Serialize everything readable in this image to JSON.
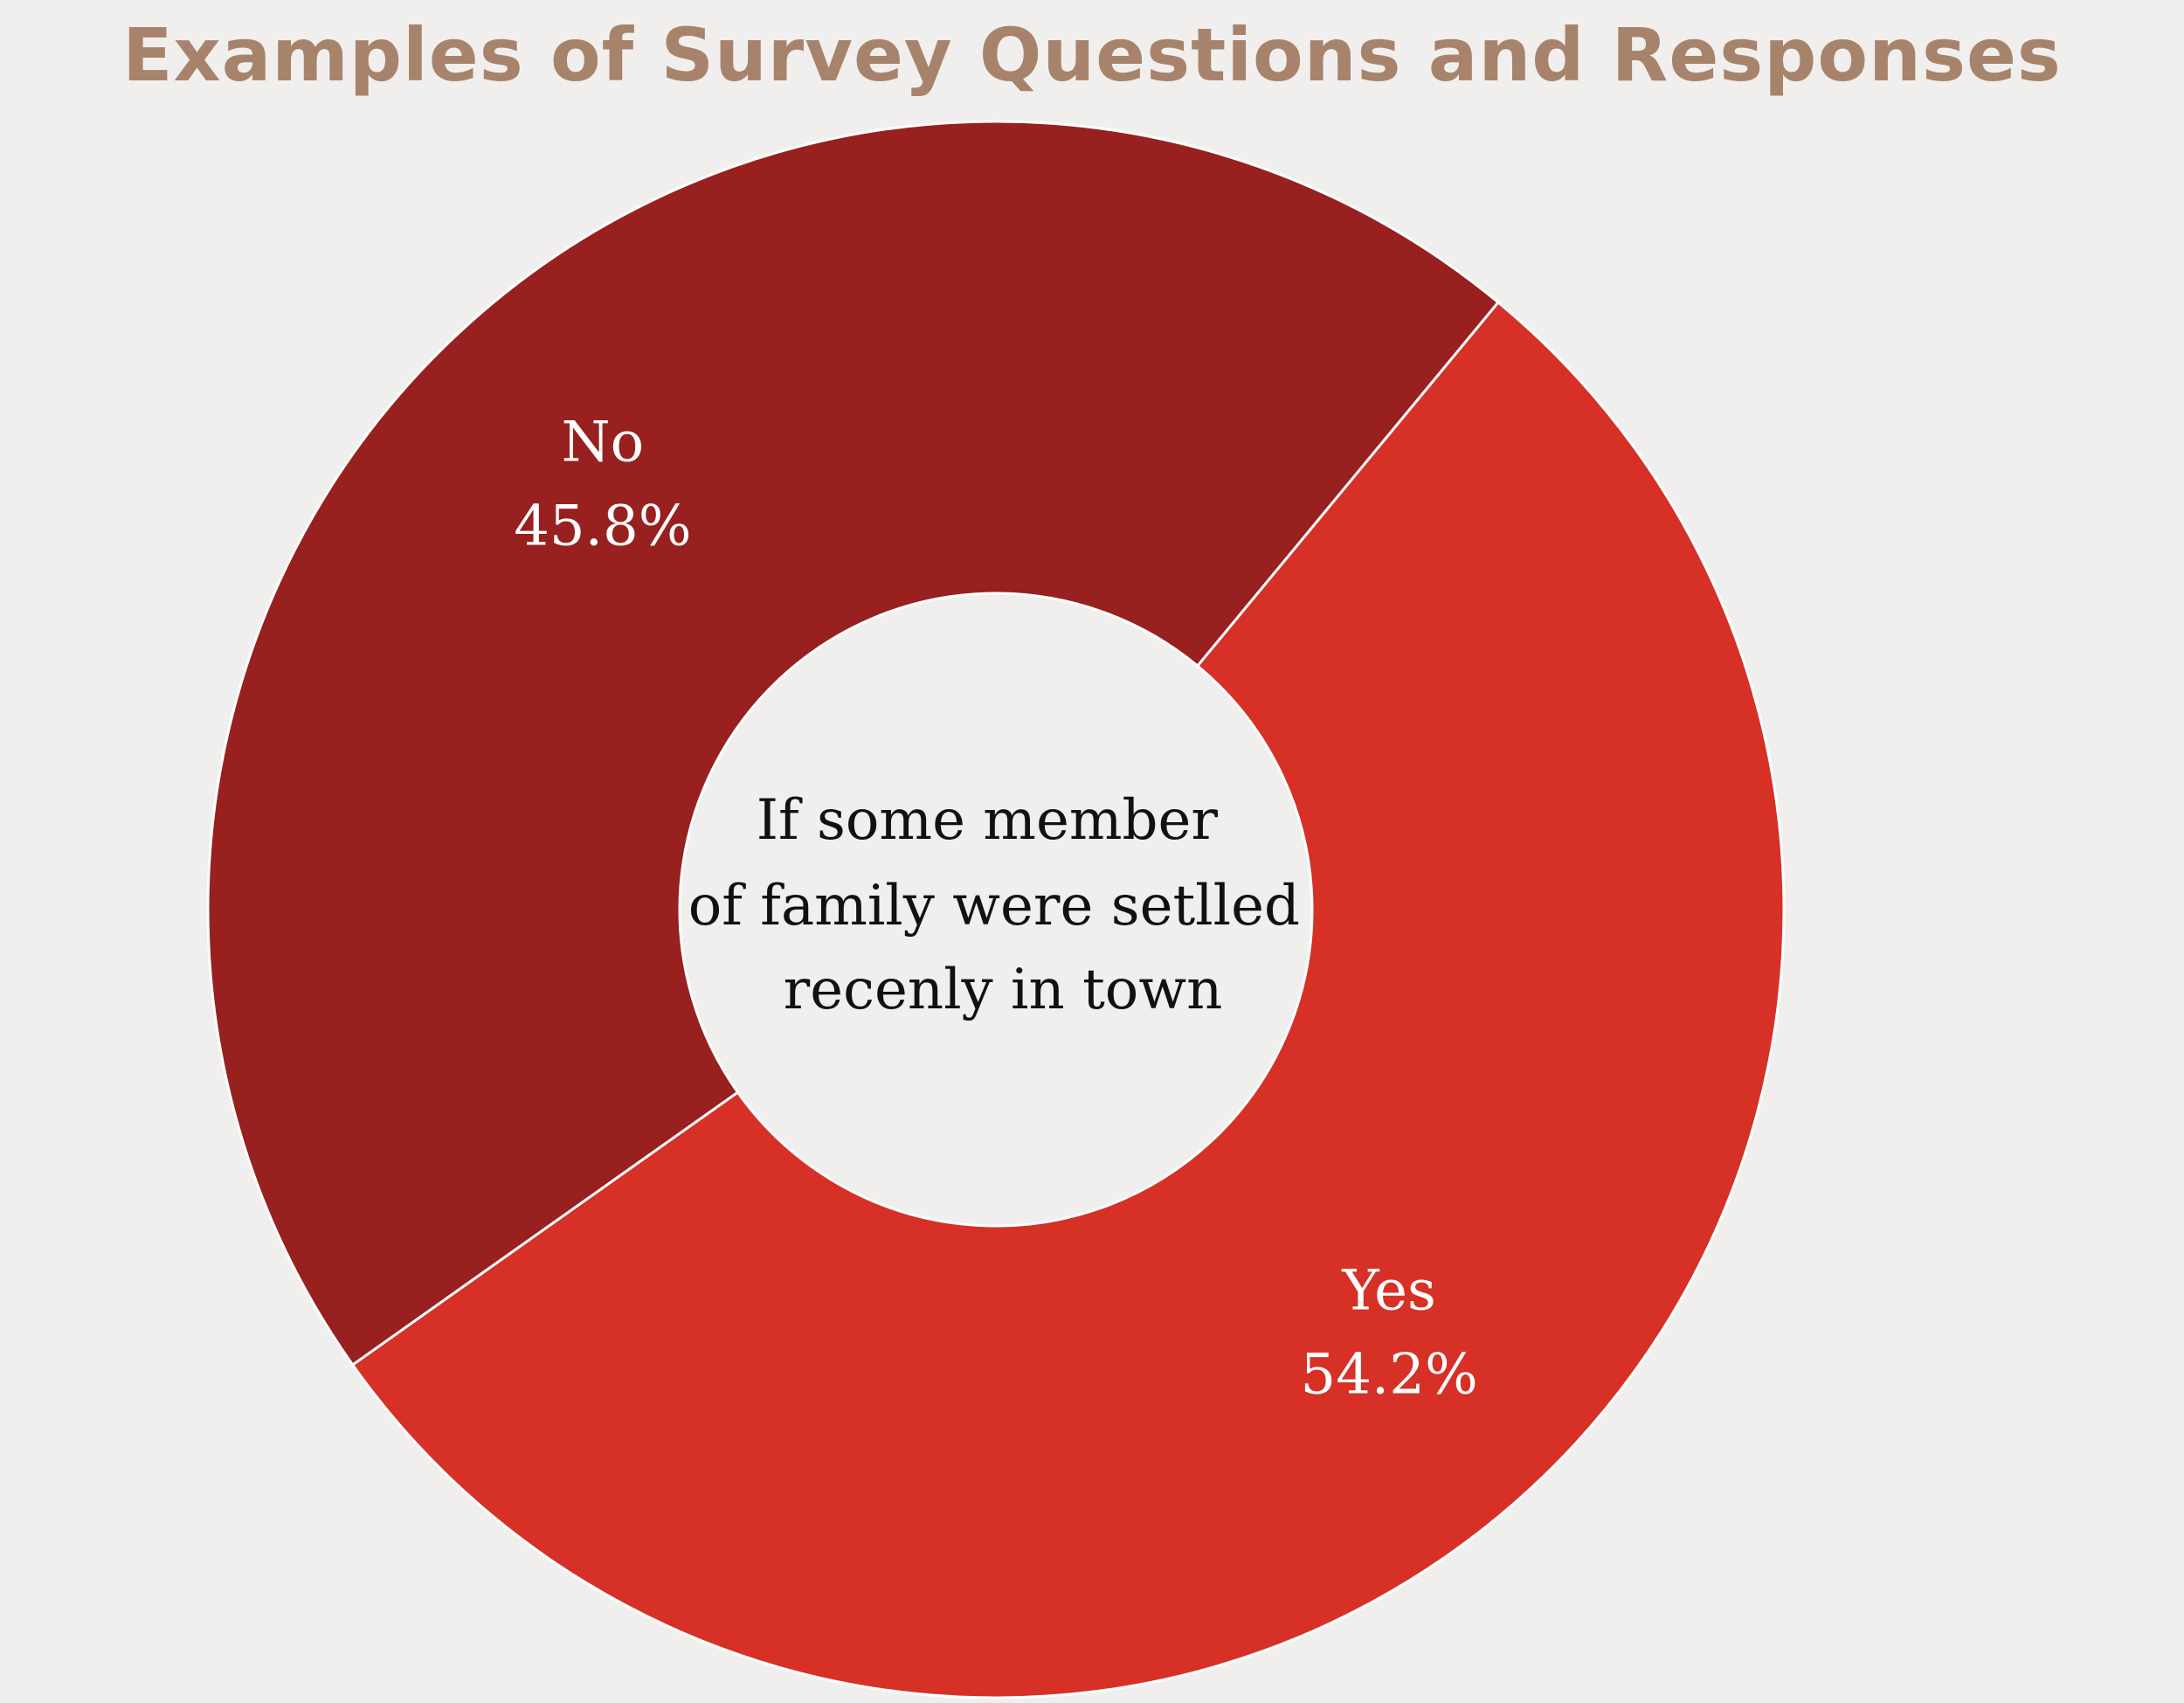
{
  "chart_data": {
    "type": "pie",
    "title": "Examples of Survey Questions and Responses",
    "center_label": [
      "If some member",
      "of family were setlled",
      "recenly in town"
    ],
    "slices": [
      {
        "label": "Yes",
        "value": 54.2,
        "value_label": "54.2%",
        "color": "#d63027"
      },
      {
        "label": "No",
        "value": 45.8,
        "value_label": "45.8%",
        "color": "#98201f"
      }
    ],
    "background": "#f0efed",
    "title_color": "#a8836c",
    "donut": true
  }
}
